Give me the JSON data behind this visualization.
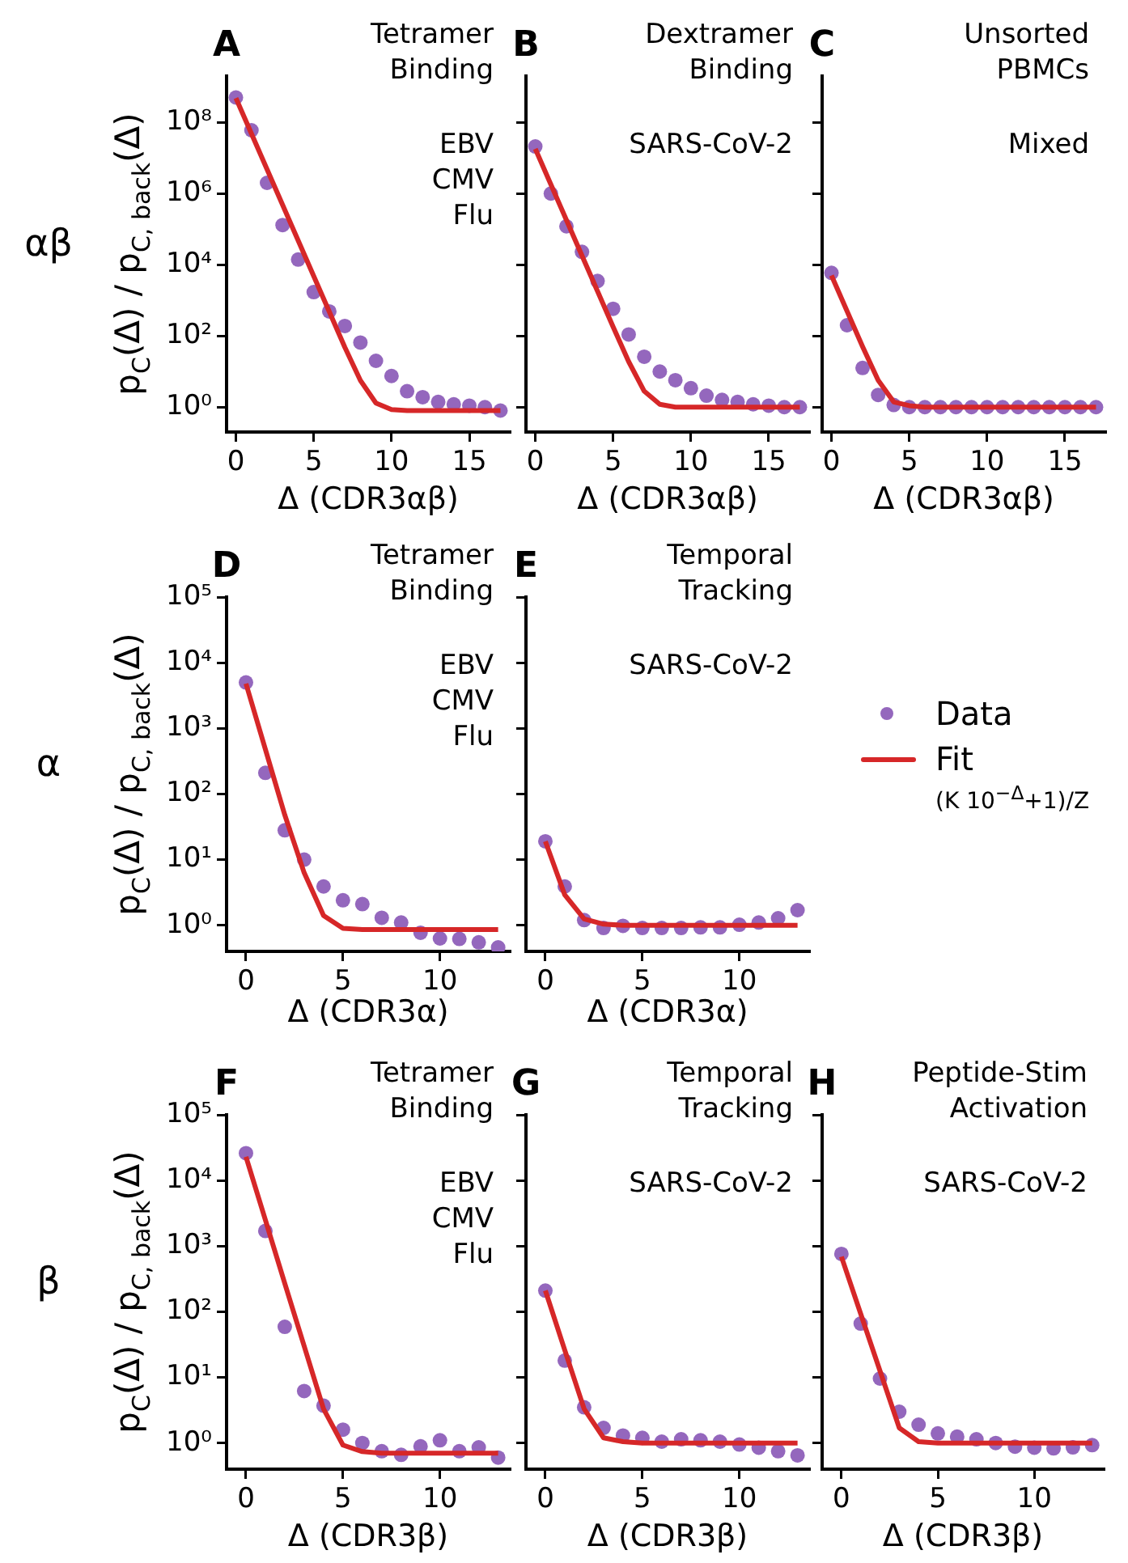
{
  "chart_data": [
    {
      "type": "scatter",
      "title": "A",
      "annotations": [
        "Tetramer\nBinding",
        "EBV\nCMV\nFlu",
        "αβ"
      ],
      "xlabel": "Δ (CDR3αβ)",
      "ylabel": "p$_{C}$(Δ) / p$_{C, back}$(Δ)",
      "log": "y",
      "grid": false,
      "x": [
        0,
        1,
        2,
        3,
        4,
        5,
        6,
        7,
        8,
        9,
        10,
        11,
        12,
        13,
        14,
        15,
        16,
        17
      ],
      "xlim": [
        -0.6,
        17.6
      ],
      "xticks": [
        0,
        5,
        10,
        15
      ],
      "ylim": [
        0.2,
        2000000000
      ],
      "yticks": [
        {
          "value": 1,
          "label": "10⁰"
        },
        {
          "value": 100,
          "label": "10²"
        },
        {
          "value": 10000,
          "label": "10⁴"
        },
        {
          "value": 1000000,
          "label": "10⁶"
        },
        {
          "value": 100000000,
          "label": "10⁸"
        }
      ],
      "series": [
        {
          "type": "scatter",
          "marker": "circle",
          "color": "#9467bd",
          "values": [
            500000000,
            60000000,
            2000000,
            130000,
            14000,
            1700,
            490,
            190,
            65,
            20,
            7.5,
            2.8,
            1.9,
            1.4,
            1.2,
            1.1,
            1.0,
            0.8
          ]
        },
        {
          "type": "line",
          "marker": "none",
          "color": "#d62728",
          "values": [
            480000000,
            48000000,
            4800000,
            480000,
            48000,
            4800,
            480,
            48,
            5.6,
            1.3,
            0.85,
            0.8,
            0.8,
            0.8,
            0.8,
            0.8,
            0.8,
            0.8
          ]
        }
      ]
    },
    {
      "type": "scatter",
      "title": "B",
      "annotations": [
        "Dextramer\nBinding",
        "SARS-CoV-2"
      ],
      "xlabel": "Δ (CDR3αβ)",
      "log": "y",
      "grid": false,
      "tick_labels": "x",
      "x": [
        0,
        1,
        2,
        3,
        4,
        5,
        6,
        7,
        8,
        9,
        10,
        11,
        12,
        13,
        14,
        15,
        16,
        17
      ],
      "xlim": [
        -0.6,
        17.6
      ],
      "xticks": [
        0,
        5,
        10,
        15
      ],
      "ylim": [
        0.2,
        2000000000
      ],
      "yticks": [
        {
          "value": 1,
          "label": null
        },
        {
          "value": 100,
          "label": null
        },
        {
          "value": 10000,
          "label": null
        },
        {
          "value": 1000000,
          "label": null
        },
        {
          "value": 100000000,
          "label": null
        }
      ],
      "series": [
        {
          "type": "scatter",
          "marker": "circle",
          "color": "#9467bd",
          "values": [
            21000000,
            1000000,
            120000,
            23000,
            3500,
            580,
            110,
            26,
            10,
            5.7,
            3.4,
            2.1,
            1.6,
            1.4,
            1.2,
            1.1,
            1.0,
            1.0
          ]
        },
        {
          "type": "line",
          "marker": "none",
          "color": "#d62728",
          "values": [
            18000000,
            1800000,
            180000,
            18000,
            1800,
            180,
            19,
            2.8,
            1.2,
            1.0,
            1.0,
            1.0,
            1.0,
            1.0,
            1.0,
            1.0,
            1.0,
            1.0
          ]
        }
      ]
    },
    {
      "type": "scatter",
      "title": "C",
      "annotations": [
        "Unsorted\nPBMCs",
        "Mixed"
      ],
      "xlabel": "Δ (CDR3αβ)",
      "log": "y",
      "grid": false,
      "tick_labels": "x",
      "x": [
        0,
        1,
        2,
        3,
        4,
        5,
        6,
        7,
        8,
        9,
        10,
        11,
        12,
        13,
        14,
        15,
        16,
        17
      ],
      "xlim": [
        -0.6,
        17.6
      ],
      "xticks": [
        0,
        5,
        10,
        15
      ],
      "ylim": [
        0.2,
        2000000000
      ],
      "yticks": [
        {
          "value": 1,
          "label": null
        },
        {
          "value": 100,
          "label": null
        },
        {
          "value": 10000,
          "label": null
        },
        {
          "value": 1000000,
          "label": null
        },
        {
          "value": 100000000,
          "label": null
        }
      ],
      "series": [
        {
          "type": "scatter",
          "marker": "circle",
          "color": "#9467bd",
          "values": [
            5900,
            200,
            12.6,
            2.2,
            1.15,
            1.0,
            1.0,
            1.0,
            1.0,
            1.0,
            1.0,
            1.0,
            1.0,
            1.0,
            1.0,
            1.0,
            1.0,
            1.0
          ]
        },
        {
          "type": "line",
          "marker": "none",
          "color": "#d62728",
          "values": [
            5000,
            500,
            50,
            5.7,
            1.4,
            1.1,
            1.0,
            1.0,
            1.0,
            1.0,
            1.0,
            1.0,
            1.0,
            1.0,
            1.0,
            1.0,
            1.0,
            1.0
          ]
        }
      ]
    },
    {
      "type": "scatter",
      "title": "D",
      "annotations": [
        "Tetramer\nBinding",
        "EBV\nCMV\nFlu",
        "α"
      ],
      "xlabel": "Δ (CDR3α)",
      "ylabel": "p$_{C}$(Δ) / p$_{C, back}$(Δ)",
      "log": "y",
      "grid": false,
      "x": [
        0,
        1,
        2,
        3,
        4,
        5,
        6,
        7,
        8,
        9,
        10,
        11,
        12,
        13
      ],
      "xlim": [
        -1,
        13.6
      ],
      "xticks": [
        0,
        5,
        10
      ],
      "ylim": [
        0.4,
        100000
      ],
      "yticks": [
        {
          "value": 1,
          "label": "10⁰"
        },
        {
          "value": 10,
          "label": "10¹"
        },
        {
          "value": 100,
          "label": "10²"
        },
        {
          "value": 1000,
          "label": "10³"
        },
        {
          "value": 10000,
          "label": "10⁴"
        },
        {
          "value": 100000,
          "label": "10⁵"
        }
      ],
      "series": [
        {
          "type": "scatter",
          "marker": "circle",
          "color": "#9467bd",
          "values": [
            5000,
            210,
            28,
            10,
            3.9,
            2.4,
            2.1,
            1.3,
            1.1,
            0.77,
            0.63,
            0.62,
            0.55,
            0.46
          ]
        },
        {
          "type": "line",
          "marker": "none",
          "color": "#d62728",
          "values": [
            4800,
            480,
            48,
            6.3,
            1.4,
            0.9,
            0.86,
            0.86,
            0.86,
            0.86,
            0.86,
            0.86,
            0.86,
            0.86
          ]
        }
      ]
    },
    {
      "type": "scatter",
      "title": "E",
      "annotations": [
        "Temporal\nTracking",
        "SARS-CoV-2"
      ],
      "xlabel": "Δ (CDR3α)",
      "log": "y",
      "grid": false,
      "tick_labels": "x",
      "legend": "right",
      "x": [
        0,
        1,
        2,
        3,
        4,
        5,
        6,
        7,
        8,
        9,
        10,
        11,
        12,
        13
      ],
      "xlim": [
        -1,
        13.6
      ],
      "xticks": [
        0,
        5,
        10
      ],
      "ylim": [
        0.4,
        100000
      ],
      "yticks": [
        {
          "value": 1,
          "label": null
        },
        {
          "value": 10,
          "label": null
        },
        {
          "value": 100,
          "label": null
        },
        {
          "value": 1000,
          "label": null
        },
        {
          "value": 10000,
          "label": null
        },
        {
          "value": 100000,
          "label": null
        }
      ],
      "series": [
        {
          "name": "Data",
          "type": "scatter",
          "marker": "circle",
          "color": "#9467bd",
          "values": [
            19,
            3.9,
            1.2,
            0.91,
            0.98,
            0.91,
            0.91,
            0.91,
            0.93,
            0.93,
            1.02,
            1.1,
            1.28,
            1.7
          ]
        },
        {
          "name": "Fit\n(K 10$^{−Δ}$+1)/Z",
          "type": "line",
          "marker": "none",
          "color": "#d62728",
          "values": [
            19,
            2.9,
            1.25,
            1.04,
            1.0,
            1.0,
            1.0,
            1.0,
            1.0,
            1.0,
            1.0,
            1.0,
            1.0,
            1.0
          ]
        }
      ]
    },
    {
      "type": "scatter",
      "title": "F",
      "annotations": [
        "Tetramer\nBinding",
        "EBV\nCMV\nFlu",
        "β"
      ],
      "xlabel": "Δ (CDR3β)",
      "ylabel": "p$_{C}$(Δ) / p$_{C, back}$(Δ)",
      "log": "y",
      "grid": false,
      "x": [
        0,
        1,
        2,
        3,
        4,
        5,
        6,
        7,
        8,
        9,
        10,
        11,
        12,
        13
      ],
      "xlim": [
        -1,
        13.6
      ],
      "xticks": [
        0,
        5,
        10
      ],
      "ylim": [
        0.4,
        100000
      ],
      "yticks": [
        {
          "value": 1,
          "label": "10⁰"
        },
        {
          "value": 10,
          "label": "10¹"
        },
        {
          "value": 100,
          "label": "10²"
        },
        {
          "value": 1000,
          "label": "10³"
        },
        {
          "value": 10000,
          "label": "10⁴"
        },
        {
          "value": 100000,
          "label": "10⁵"
        }
      ],
      "series": [
        {
          "type": "scatter",
          "marker": "circle",
          "color": "#9467bd",
          "values": [
            26000,
            1700,
            59,
            6.2,
            3.7,
            1.6,
            1.0,
            0.75,
            0.66,
            0.89,
            1.1,
            0.75,
            0.86,
            0.6
          ]
        },
        {
          "type": "line",
          "marker": "none",
          "color": "#d62728",
          "values": [
            23000,
            2500,
            270,
            30,
            3.3,
            0.93,
            0.74,
            0.7,
            0.7,
            0.7,
            0.7,
            0.7,
            0.7,
            0.7
          ]
        }
      ]
    },
    {
      "type": "scatter",
      "title": "G",
      "annotations": [
        "Temporal\nTracking",
        "SARS-CoV-2"
      ],
      "xlabel": "Δ (CDR3β)",
      "log": "y",
      "grid": false,
      "tick_labels": "x",
      "x": [
        0,
        1,
        2,
        3,
        4,
        5,
        6,
        7,
        8,
        9,
        10,
        11,
        12,
        13
      ],
      "xlim": [
        -1,
        13.6
      ],
      "xticks": [
        0,
        5,
        10
      ],
      "ylim": [
        0.4,
        100000
      ],
      "yticks": [
        {
          "value": 1,
          "label": null
        },
        {
          "value": 10,
          "label": null
        },
        {
          "value": 100,
          "label": null
        },
        {
          "value": 1000,
          "label": null
        },
        {
          "value": 10000,
          "label": null
        },
        {
          "value": 100000,
          "label": null
        }
      ],
      "series": [
        {
          "type": "scatter",
          "marker": "circle",
          "color": "#9467bd",
          "values": [
            210,
            18,
            3.5,
            1.7,
            1.3,
            1.2,
            1.05,
            1.14,
            1.1,
            1.05,
            0.95,
            0.85,
            0.75,
            0.65
          ]
        },
        {
          "type": "line",
          "marker": "none",
          "color": "#d62728",
          "values": [
            210,
            26,
            3.3,
            1.2,
            1.05,
            1.0,
            1.0,
            1.0,
            1.0,
            1.0,
            1.0,
            1.0,
            1.0,
            1.0
          ]
        }
      ]
    },
    {
      "type": "scatter",
      "title": "H",
      "annotations": [
        "Peptide-Stim\nActivation",
        "SARS-CoV-2"
      ],
      "xlabel": "Δ (CDR3β)",
      "log": "y",
      "grid": false,
      "tick_labels": "x",
      "x": [
        0,
        1,
        2,
        3,
        4,
        5,
        6,
        7,
        8,
        9,
        10,
        11,
        12,
        13
      ],
      "xlim": [
        -1,
        13.6
      ],
      "xticks": [
        0,
        5,
        10
      ],
      "ylim": [
        0.4,
        100000
      ],
      "yticks": [
        {
          "value": 1,
          "label": null
        },
        {
          "value": 10,
          "label": null
        },
        {
          "value": 100,
          "label": null
        },
        {
          "value": 1000,
          "label": null
        },
        {
          "value": 10000,
          "label": null
        },
        {
          "value": 100000,
          "label": null
        }
      ],
      "series": [
        {
          "type": "scatter",
          "marker": "circle",
          "color": "#9467bd",
          "values": [
            760,
            66,
            9.6,
            3.0,
            1.9,
            1.4,
            1.25,
            1.14,
            1.0,
            0.88,
            0.85,
            0.83,
            0.86,
            0.93
          ]
        },
        {
          "type": "line",
          "marker": "none",
          "color": "#d62728",
          "values": [
            690,
            93,
            12.6,
            1.7,
            1.05,
            1.0,
            1.0,
            1.0,
            1.0,
            1.0,
            1.0,
            1.0,
            1.0,
            1.0
          ]
        }
      ]
    }
  ]
}
